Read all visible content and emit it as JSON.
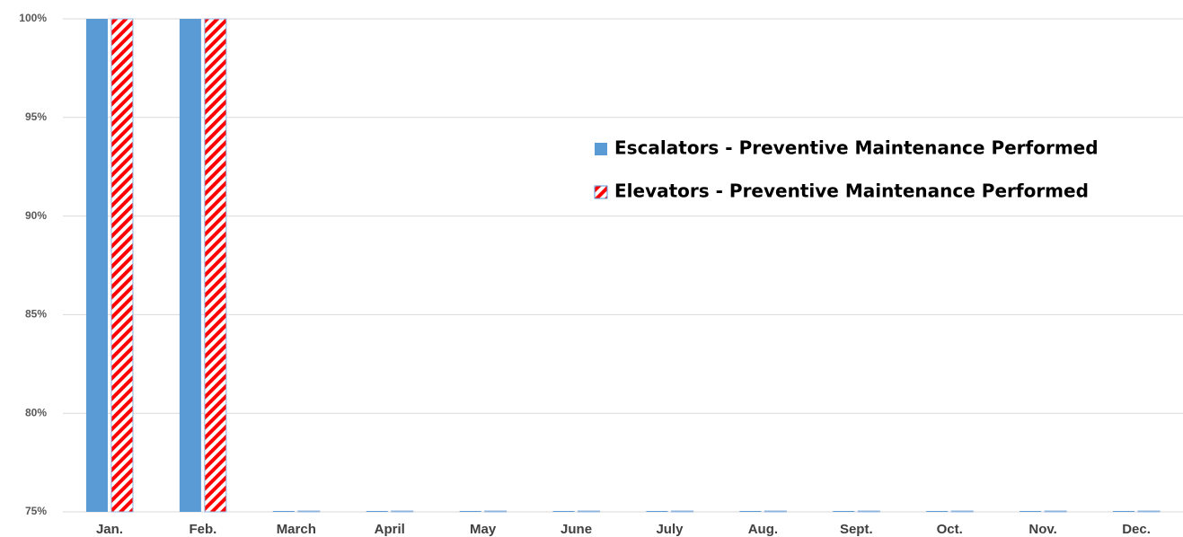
{
  "chart_data": {
    "type": "bar",
    "categories": [
      "Jan.",
      "Feb.",
      "March",
      "April",
      "May",
      "June",
      "July",
      "Aug.",
      "Sept.",
      "Oct.",
      "Nov.",
      "Dec."
    ],
    "series": [
      {
        "name": "Escalators - Preventive Maintenance Performed",
        "color": "#5b9bd5",
        "values": [
          100,
          100,
          75,
          75,
          75,
          75,
          75,
          75,
          75,
          75,
          75,
          75
        ]
      },
      {
        "name": "Elevators - Preventive Maintenance Performed",
        "color": "#ff0000",
        "values": [
          100,
          100,
          75,
          75,
          75,
          75,
          75,
          75,
          75,
          75,
          75,
          75
        ]
      }
    ],
    "ylim": [
      75,
      100
    ],
    "yticks": [
      {
        "value": 75,
        "label": "75%"
      },
      {
        "value": 80,
        "label": "80%"
      },
      {
        "value": 85,
        "label": "85%"
      },
      {
        "value": 90,
        "label": "90%"
      },
      {
        "value": 95,
        "label": "95%"
      },
      {
        "value": 100,
        "label": "100%"
      }
    ],
    "grid": true
  }
}
